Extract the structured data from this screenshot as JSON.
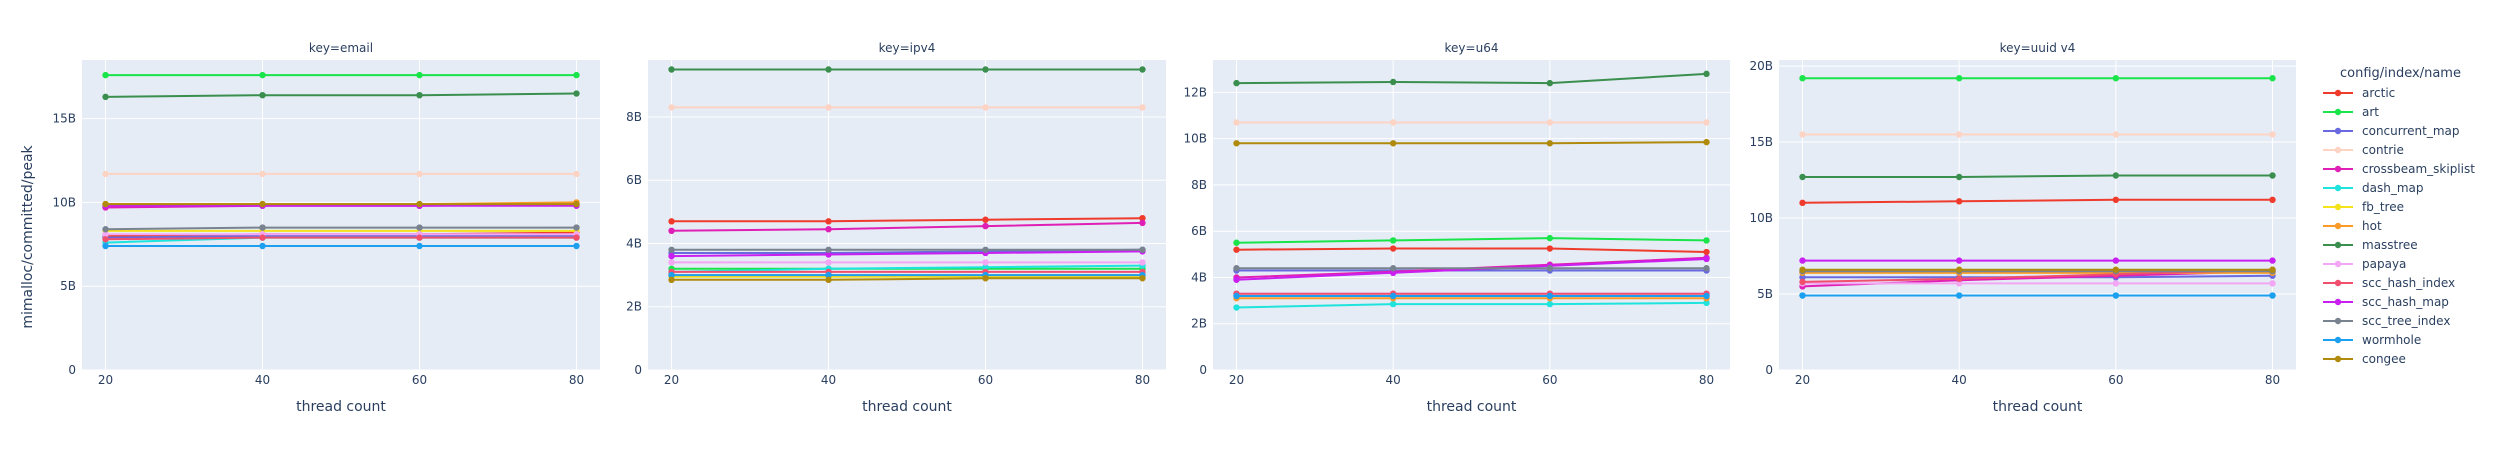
{
  "y_axis_title": "mimalloc/committed/peak",
  "x_axis_title": "thread count",
  "legend_title": "config/index/name",
  "series_styles": [
    {
      "name": "arctic",
      "color": "#ef3b2c"
    },
    {
      "name": "art",
      "color": "#19e44a"
    },
    {
      "name": "concurrent_map",
      "color": "#6a6ae0"
    },
    {
      "name": "contrie",
      "color": "#fdd3c4"
    },
    {
      "name": "crossbeam_skiplist",
      "color": "#e01fb5"
    },
    {
      "name": "dash_map",
      "color": "#1fe3dd"
    },
    {
      "name": "fb_tree",
      "color": "#f4e31a"
    },
    {
      "name": "hot",
      "color": "#fb9a29"
    },
    {
      "name": "masstree",
      "color": "#3a8f4f"
    },
    {
      "name": "papaya",
      "color": "#f3a6f3"
    },
    {
      "name": "scc_hash_index",
      "color": "#f0506e"
    },
    {
      "name": "scc_hash_map",
      "color": "#c91ff0"
    },
    {
      "name": "scc_tree_index",
      "color": "#78838f"
    },
    {
      "name": "wormhole",
      "color": "#1d9ff0"
    },
    {
      "name": "congee",
      "color": "#b08a0c"
    }
  ],
  "chart_data": [
    {
      "type": "line",
      "title": "key=email",
      "x": [
        20,
        40,
        60,
        80
      ],
      "ylim": [
        0,
        18.5
      ],
      "yticks": [
        0,
        5,
        10,
        15
      ],
      "ytick_labels": [
        "0",
        "5B",
        "10B",
        "15B"
      ],
      "series": [
        {
          "name": "arctic",
          "values": [
            8.0,
            8.1,
            8.1,
            8.2
          ]
        },
        {
          "name": "art",
          "values": [
            17.6,
            17.6,
            17.6,
            17.6
          ]
        },
        {
          "name": "concurrent_map",
          "values": [
            7.9,
            8.0,
            8.0,
            8.0
          ]
        },
        {
          "name": "contrie",
          "values": [
            11.7,
            11.7,
            11.7,
            11.7
          ]
        },
        {
          "name": "crossbeam_skiplist",
          "values": [
            9.7,
            9.8,
            9.8,
            9.9
          ]
        },
        {
          "name": "dash_map",
          "values": [
            7.6,
            7.9,
            7.9,
            7.9
          ]
        },
        {
          "name": "fb_tree",
          "values": [
            8.3,
            8.3,
            8.3,
            8.3
          ]
        },
        {
          "name": "hot",
          "values": [
            9.9,
            9.9,
            9.9,
            10.0
          ]
        },
        {
          "name": "masstree",
          "values": [
            16.3,
            16.4,
            16.4,
            16.5
          ]
        },
        {
          "name": "papaya",
          "values": [
            8.1,
            8.1,
            8.1,
            8.1
          ]
        },
        {
          "name": "scc_hash_index",
          "values": [
            7.8,
            7.9,
            7.9,
            7.9
          ]
        },
        {
          "name": "scc_hash_map",
          "values": [
            9.8,
            9.8,
            9.8,
            9.8
          ]
        },
        {
          "name": "scc_tree_index",
          "values": [
            8.4,
            8.5,
            8.5,
            8.5
          ]
        },
        {
          "name": "wormhole",
          "values": [
            7.4,
            7.4,
            7.4,
            7.4
          ]
        },
        {
          "name": "congee",
          "values": [
            9.9,
            9.9,
            9.9,
            9.9
          ]
        }
      ]
    },
    {
      "type": "line",
      "title": "key=ipv4",
      "x": [
        20,
        40,
        60,
        80
      ],
      "ylim": [
        0,
        9.8
      ],
      "yticks": [
        0,
        2,
        4,
        6,
        8
      ],
      "ytick_labels": [
        "0",
        "2B",
        "4B",
        "6B",
        "8B"
      ],
      "series": [
        {
          "name": "arctic",
          "values": [
            4.7,
            4.7,
            4.75,
            4.8
          ]
        },
        {
          "name": "art",
          "values": [
            3.2,
            3.2,
            3.2,
            3.2
          ]
        },
        {
          "name": "concurrent_map",
          "values": [
            3.7,
            3.7,
            3.75,
            3.8
          ]
        },
        {
          "name": "contrie",
          "values": [
            8.3,
            8.3,
            8.3,
            8.3
          ]
        },
        {
          "name": "crossbeam_skiplist",
          "values": [
            4.4,
            4.45,
            4.55,
            4.65
          ]
        },
        {
          "name": "dash_map",
          "values": [
            3.1,
            3.2,
            3.25,
            3.3
          ]
        },
        {
          "name": "fb_tree",
          "values": [
            2.95,
            2.95,
            2.95,
            2.95
          ]
        },
        {
          "name": "hot",
          "values": [
            3.0,
            3.0,
            3.0,
            3.0
          ]
        },
        {
          "name": "masstree",
          "values": [
            9.5,
            9.5,
            9.5,
            9.5
          ]
        },
        {
          "name": "papaya",
          "values": [
            3.4,
            3.4,
            3.4,
            3.4
          ]
        },
        {
          "name": "scc_hash_index",
          "values": [
            3.1,
            3.1,
            3.1,
            3.1
          ]
        },
        {
          "name": "scc_hash_map",
          "values": [
            3.6,
            3.65,
            3.7,
            3.75
          ]
        },
        {
          "name": "scc_tree_index",
          "values": [
            3.8,
            3.8,
            3.8,
            3.8
          ]
        },
        {
          "name": "wormhole",
          "values": [
            3.0,
            3.0,
            3.0,
            3.0
          ]
        },
        {
          "name": "congee",
          "values": [
            2.85,
            2.85,
            2.9,
            2.9
          ]
        }
      ]
    },
    {
      "type": "line",
      "title": "key=u64",
      "x": [
        20,
        40,
        60,
        80
      ],
      "ylim": [
        0,
        13.4
      ],
      "yticks": [
        0,
        2,
        4,
        6,
        8,
        10,
        12
      ],
      "ytick_labels": [
        "0",
        "2B",
        "4B",
        "6B",
        "8B",
        "10B",
        "12B"
      ],
      "series": [
        {
          "name": "arctic",
          "values": [
            5.2,
            5.25,
            5.25,
            5.1
          ]
        },
        {
          "name": "art",
          "values": [
            5.5,
            5.6,
            5.7,
            5.6
          ]
        },
        {
          "name": "concurrent_map",
          "values": [
            4.3,
            4.3,
            4.3,
            4.3
          ]
        },
        {
          "name": "contrie",
          "values": [
            10.7,
            10.7,
            10.7,
            10.7
          ]
        },
        {
          "name": "crossbeam_skiplist",
          "values": [
            4.0,
            4.25,
            4.55,
            4.85
          ]
        },
        {
          "name": "dash_map",
          "values": [
            2.7,
            2.85,
            2.85,
            2.9
          ]
        },
        {
          "name": "fb_tree",
          "values": [
            3.2,
            3.2,
            3.2,
            3.2
          ]
        },
        {
          "name": "hot",
          "values": [
            3.1,
            3.1,
            3.1,
            3.1
          ]
        },
        {
          "name": "masstree",
          "values": [
            12.4,
            12.45,
            12.4,
            12.8
          ]
        },
        {
          "name": "papaya",
          "values": [
            3.3,
            3.3,
            3.3,
            3.3
          ]
        },
        {
          "name": "scc_hash_index",
          "values": [
            3.3,
            3.3,
            3.3,
            3.3
          ]
        },
        {
          "name": "scc_hash_map",
          "values": [
            3.9,
            4.2,
            4.5,
            4.8
          ]
        },
        {
          "name": "scc_tree_index",
          "values": [
            4.4,
            4.4,
            4.4,
            4.4
          ]
        },
        {
          "name": "wormhole",
          "values": [
            3.2,
            3.2,
            3.2,
            3.2
          ]
        },
        {
          "name": "congee",
          "values": [
            9.8,
            9.8,
            9.8,
            9.85
          ]
        }
      ]
    },
    {
      "type": "line",
      "title": "key=uuid v4",
      "x": [
        20,
        40,
        60,
        80
      ],
      "ylim": [
        0,
        20.4
      ],
      "yticks": [
        0,
        5,
        10,
        15,
        20
      ],
      "ytick_labels": [
        "0",
        "5B",
        "10B",
        "15B",
        "20B"
      ],
      "series": [
        {
          "name": "arctic",
          "values": [
            11.0,
            11.1,
            11.2,
            11.2
          ]
        },
        {
          "name": "art",
          "values": [
            19.2,
            19.2,
            19.2,
            19.2
          ]
        },
        {
          "name": "concurrent_map",
          "values": [
            6.1,
            6.1,
            6.1,
            6.2
          ]
        },
        {
          "name": "contrie",
          "values": [
            15.5,
            15.5,
            15.5,
            15.5
          ]
        },
        {
          "name": "crossbeam_skiplist",
          "values": [
            5.5,
            5.9,
            6.2,
            6.5
          ]
        },
        {
          "name": "dash_map",
          "values": [
            4.9,
            4.9,
            4.9,
            4.9
          ]
        },
        {
          "name": "fb_tree",
          "values": [
            6.4,
            6.4,
            6.4,
            6.4
          ]
        },
        {
          "name": "hot",
          "values": [
            6.4,
            6.4,
            6.4,
            6.4
          ]
        },
        {
          "name": "masstree",
          "values": [
            12.7,
            12.7,
            12.8,
            12.8
          ]
        },
        {
          "name": "papaya",
          "values": [
            5.7,
            5.7,
            5.7,
            5.7
          ]
        },
        {
          "name": "scc_hash_index",
          "values": [
            5.8,
            6.0,
            6.3,
            6.6
          ]
        },
        {
          "name": "scc_hash_map",
          "values": [
            7.2,
            7.2,
            7.2,
            7.2
          ]
        },
        {
          "name": "scc_tree_index",
          "values": [
            6.5,
            6.5,
            6.5,
            6.5
          ]
        },
        {
          "name": "wormhole",
          "values": [
            4.9,
            4.9,
            4.9,
            4.9
          ]
        },
        {
          "name": "congee",
          "values": [
            6.6,
            6.6,
            6.6,
            6.6
          ]
        }
      ]
    }
  ]
}
